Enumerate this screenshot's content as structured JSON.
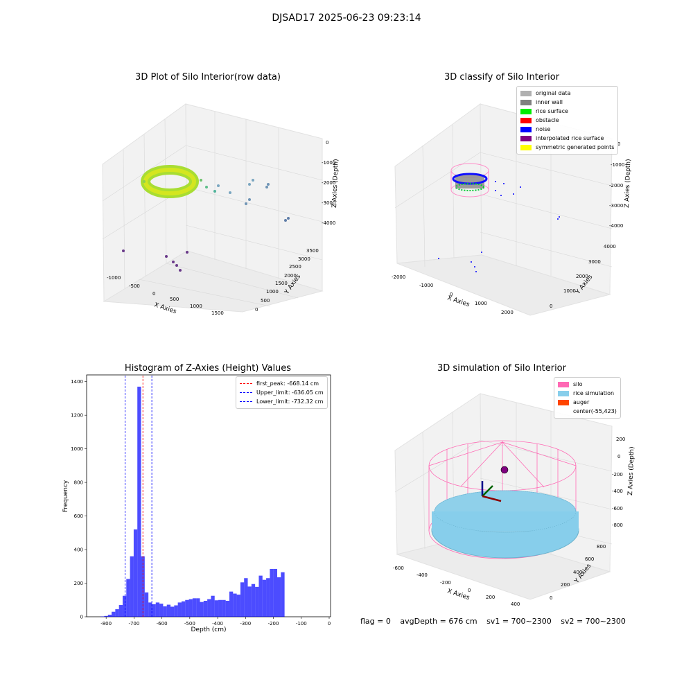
{
  "suptitle": "DJSAD17 2025-06-23 09:23:14",
  "footer": {
    "flag": "flag = 0",
    "avg_depth": "avgDepth = 676 cm",
    "sv1": "sv1 = 700~2300",
    "sv2": "sv2 = 700~2300"
  },
  "panel1": {
    "title": "3D Plot of Silo Interior(row data)",
    "xlabel": "X Axies",
    "ylabel": "Y Axies",
    "zlabel": "Z Axies (Depth)",
    "xticks": [
      "-1000",
      "-500",
      "0",
      "500",
      "1000",
      "1500"
    ],
    "yticks": [
      "0",
      "500",
      "1000",
      "1500",
      "2000",
      "2500",
      "3000",
      "3500"
    ],
    "zticks": [
      "0",
      "-1000",
      "-2000",
      "-3000",
      "-4000"
    ]
  },
  "panel2": {
    "title": "3D classify of Silo Interior",
    "xlabel": "X Axies",
    "ylabel": "Y Axies",
    "zlabel": "Z Axies (Depth)",
    "xticks": [
      "-2000",
      "-1000",
      "0",
      "1000",
      "2000"
    ],
    "yticks": [
      "0",
      "1000",
      "2000",
      "3000",
      "4000"
    ],
    "zticks": [
      "0",
      "-1000",
      "-2000",
      "-3000",
      "-4000"
    ],
    "legend": [
      {
        "label": "original data",
        "color": "#b0b0b0"
      },
      {
        "label": "inner wall",
        "color": "#808080"
      },
      {
        "label": "rice surface",
        "color": "#00ee00"
      },
      {
        "label": "obstacle",
        "color": "#ff0000"
      },
      {
        "label": "noise",
        "color": "#0000ff"
      },
      {
        "label": "interpolated rice surface",
        "color": "#800080"
      },
      {
        "label": "symmetric generated points",
        "color": "#ffff00"
      }
    ]
  },
  "panel4": {
    "title": "3D simulation of Silo Interior",
    "xlabel": "X Axies",
    "ylabel": "Y Axies",
    "zlabel": "Z Axies (Depth)",
    "xticks": [
      "-600",
      "-400",
      "-200",
      "0",
      "200",
      "400"
    ],
    "yticks": [
      "0",
      "200",
      "400",
      "600",
      "800"
    ],
    "zticks": [
      "200",
      "0",
      "-200",
      "-400",
      "-600",
      "-800"
    ],
    "legend": [
      {
        "label": "silo",
        "color": "#ff69b4"
      },
      {
        "label": "rice simulation",
        "color": "#87ceeb"
      },
      {
        "label": "auger",
        "color": "#ff4500"
      },
      {
        "label": "center(-55,423)",
        "color": ""
      }
    ]
  },
  "chart_data": [
    {
      "type": "histogram",
      "title": "Histogram of Z-Axies (Height) Values",
      "xlabel": "Depth (cm)",
      "ylabel": "Frequency",
      "xlim": [
        -870,
        5
      ],
      "ylim": [
        0,
        1440
      ],
      "xticks": [
        "-800",
        "-700",
        "-600",
        "-500",
        "-400",
        "-300",
        "-200",
        "-100",
        "0"
      ],
      "yticks": [
        "0",
        "200",
        "400",
        "600",
        "800",
        "1000",
        "1200",
        "1400"
      ],
      "bar_color": "#0000ff",
      "bin_start": -820,
      "bin_width": 13.2,
      "values": [
        2,
        5,
        12,
        30,
        45,
        70,
        125,
        225,
        360,
        520,
        1370,
        360,
        145,
        85,
        75,
        85,
        78,
        62,
        72,
        60,
        68,
        85,
        92,
        100,
        105,
        110,
        110,
        88,
        95,
        105,
        125,
        98,
        100,
        100,
        95,
        150,
        138,
        132,
        205,
        230,
        180,
        195,
        178,
        245,
        220,
        230,
        285,
        285,
        235,
        265
      ],
      "vlines": [
        {
          "label": "first_peak: -668.14 cm",
          "x": -668.14,
          "color": "#ff0000"
        },
        {
          "label": "Upper_limit: -636.05 cm",
          "x": -636.05,
          "color": "#0000ff"
        },
        {
          "label": "Lower_limit: -732.32 cm",
          "x": -732.32,
          "color": "#0000ff"
        }
      ],
      "legend_position": "upper-right"
    }
  ]
}
